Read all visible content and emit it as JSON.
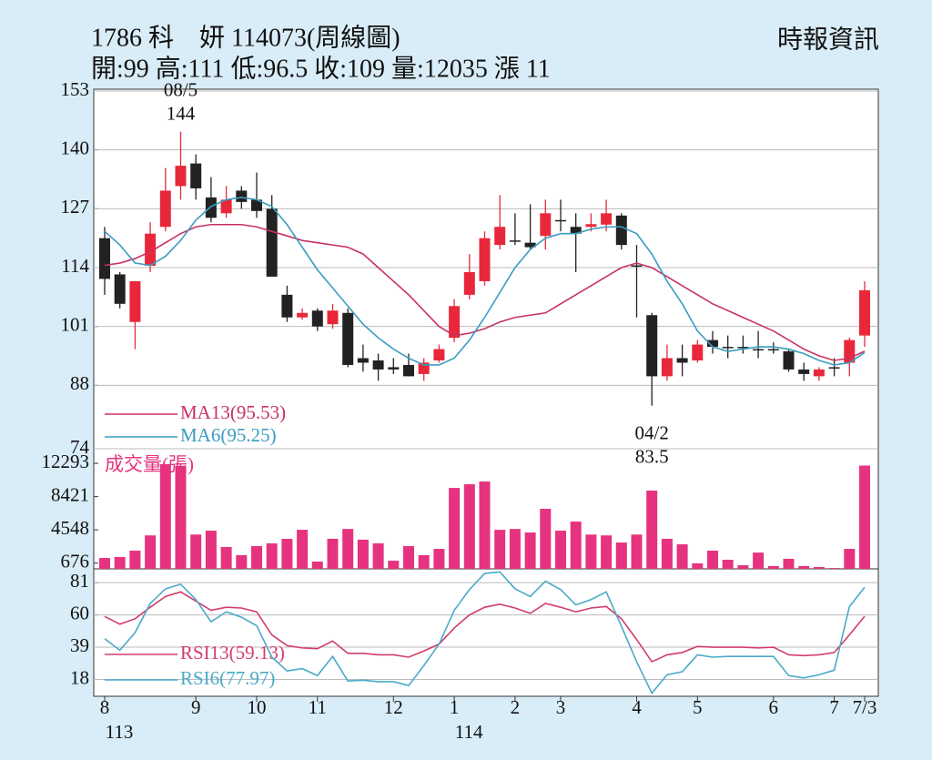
{
  "header": {
    "title": "1786  科　妍 114073(周線圖)",
    "source": "時報資訊",
    "summary": "開:99 高:111 低:96.5 收:109 量:12035 漲 11"
  },
  "chart_data": [
    {
      "type": "candlestick",
      "open": [
        120.5,
        112.5,
        102,
        114.4,
        123,
        132,
        137,
        129.5,
        126,
        131,
        129,
        127,
        108,
        103,
        104.5,
        101.5,
        104,
        94,
        93.5,
        92,
        92.5,
        90.5,
        93.5,
        98.5,
        108,
        111,
        119,
        120,
        119.5,
        121,
        124.5,
        123,
        123,
        123.5,
        125.5,
        114.5,
        103.5,
        90,
        94,
        93.5,
        98,
        96.5,
        96.5,
        96,
        96,
        95.5,
        91.5,
        90,
        92,
        93,
        99
      ],
      "high": [
        123,
        113,
        111,
        124,
        136,
        144,
        139,
        134,
        132,
        132,
        135,
        130,
        110,
        105,
        105,
        106,
        105,
        97,
        95,
        94,
        95,
        94,
        97,
        107,
        117,
        122,
        130,
        126,
        128,
        129,
        129,
        126,
        126,
        129,
        126,
        119,
        104,
        97,
        97,
        98,
        100,
        99,
        99,
        100,
        97.5,
        96,
        93,
        92,
        94,
        98.5,
        111
      ],
      "low": [
        108,
        105,
        96,
        113,
        122,
        129,
        129,
        124,
        125,
        127,
        125,
        112,
        102,
        102.5,
        100,
        100.5,
        92,
        91,
        89,
        90.5,
        90,
        89,
        93,
        97.5,
        107,
        110,
        118,
        119,
        118,
        118,
        122,
        113,
        122,
        122,
        118,
        103,
        83.5,
        89,
        90,
        93,
        95,
        94,
        95,
        94,
        95,
        91,
        89,
        89,
        90,
        90,
        96.5
      ],
      "close": [
        111.5,
        106,
        111,
        121.5,
        131,
        136.5,
        131.5,
        125,
        129,
        128.5,
        126.5,
        112,
        103,
        104,
        101,
        104.5,
        92.5,
        93,
        91.5,
        91.5,
        90,
        93,
        96,
        105.5,
        113,
        120.5,
        123,
        120,
        118.5,
        126,
        124.2,
        121.5,
        123.6,
        126,
        119,
        114.5,
        90,
        94,
        93,
        97,
        96.5,
        96.4,
        96.4,
        96,
        95.9,
        91.5,
        90.5,
        91.5,
        91.8,
        98,
        109
      ],
      "up_color": "#e8283a",
      "down_color": "#222222",
      "series": [
        {
          "name": "MA13(95.53)",
          "color": "#c8325f",
          "values": [
            114.5,
            115,
            116,
            117.5,
            119.5,
            121.5,
            123,
            123.5,
            123.5,
            123.5,
            123,
            122,
            121,
            120,
            119.5,
            119,
            118.5,
            117,
            114,
            111,
            108,
            104.5,
            101,
            99,
            99.5,
            100.5,
            102,
            103,
            103.5,
            104,
            106,
            108,
            110,
            112,
            114,
            115,
            114,
            112,
            110,
            108,
            106,
            104.5,
            103,
            101.5,
            100,
            98,
            96,
            94.5,
            93.5,
            94,
            95.53
          ]
        },
        {
          "name": "MA6(95.25)",
          "color": "#3a9cc0",
          "values": [
            122,
            119,
            115,
            114.5,
            116.5,
            120,
            124.5,
            127.5,
            129,
            129.5,
            129,
            127.5,
            123.5,
            118.5,
            113.5,
            109.5,
            105.5,
            101.5,
            98.5,
            96,
            94,
            92.5,
            92.5,
            94,
            98,
            103,
            108.5,
            114,
            118,
            120.5,
            121.5,
            121.5,
            122.5,
            123,
            123,
            121.5,
            117,
            111,
            106,
            100,
            96.5,
            95.5,
            96,
            96.5,
            96.5,
            96,
            95,
            93.5,
            92.5,
            93,
            95.25
          ]
        }
      ],
      "annotations": [
        {
          "date": "08/5",
          "value": 144
        },
        {
          "date": "04/2",
          "value": 83.5
        }
      ],
      "ylim": [
        74,
        153
      ],
      "yticks": [
        153,
        140,
        127,
        114,
        101,
        88,
        74
      ],
      "grid": true
    },
    {
      "type": "bar",
      "title": "成交量(張)",
      "color": "#e6337f",
      "values": [
        1270,
        1380,
        2120,
        3900,
        12200,
        12000,
        4000,
        4450,
        2550,
        1600,
        2650,
        2970,
        3500,
        4550,
        850,
        3500,
        4650,
        3400,
        2970,
        950,
        2650,
        1600,
        2330,
        9430,
        9860,
        10180,
        4550,
        4650,
        4240,
        7000,
        4450,
        5510,
        4000,
        3900,
        3070,
        4000,
        9120,
        3500,
        2860,
        640,
        2120,
        1060,
        420,
        1900,
        320,
        1170,
        320,
        210,
        100,
        2330,
        12035
      ],
      "ylim": [
        0,
        14000
      ],
      "yticks": [
        12293,
        8421,
        4548,
        676
      ],
      "grid": false
    },
    {
      "type": "line",
      "categories": [
        "8",
        null,
        null,
        null,
        null,
        null,
        "9",
        null,
        null,
        null,
        "10",
        null,
        null,
        null,
        "11",
        null,
        null,
        null,
        null,
        "12",
        null,
        null,
        null,
        "1",
        null,
        null,
        null,
        "2",
        null,
        null,
        "3",
        null,
        null,
        null,
        null,
        "4",
        null,
        null,
        null,
        "5",
        null,
        null,
        null,
        null,
        "6",
        null,
        null,
        null,
        "7",
        null,
        "7/3"
      ],
      "year_labels": [
        "113",
        null,
        null,
        null,
        null,
        null,
        null,
        null,
        null,
        null,
        null,
        null,
        null,
        null,
        null,
        null,
        null,
        null,
        null,
        null,
        null,
        null,
        null,
        "114",
        null,
        null,
        null,
        null,
        null,
        null,
        null,
        null,
        null,
        null,
        null,
        null,
        null,
        null,
        null,
        null,
        null,
        null,
        null,
        null,
        null,
        null,
        null,
        null,
        null,
        null,
        null
      ],
      "series": [
        {
          "name": "RSI13(59.13)",
          "color": "#d23c6e",
          "values": [
            59,
            54,
            57.5,
            65,
            72,
            75,
            69,
            63,
            65,
            64.5,
            62,
            47,
            40,
            38.5,
            38,
            43,
            35,
            35,
            34,
            34,
            32.5,
            36.5,
            41,
            51.5,
            60,
            65,
            67,
            64.5,
            61,
            67.5,
            65,
            62,
            64.5,
            65.5,
            57.5,
            44,
            29.5,
            34,
            35.5,
            39.5,
            39,
            39,
            39,
            38.5,
            39,
            34,
            33.5,
            34,
            35.5,
            47,
            59.13
          ]
        },
        {
          "name": "RSI6(77.97)",
          "color": "#4aaac8",
          "values": [
            44.5,
            37,
            48.5,
            67.5,
            77,
            80,
            70,
            55.5,
            62,
            58.5,
            53,
            32.5,
            23.5,
            25,
            20.5,
            33,
            17,
            17.5,
            16.5,
            16.5,
            14,
            27,
            41,
            63,
            76.5,
            87,
            88,
            77,
            72,
            82,
            76.5,
            66.5,
            70,
            75,
            52.5,
            29.5,
            9,
            21,
            23,
            34,
            32.5,
            33,
            33,
            33,
            33,
            20.5,
            19,
            21,
            24,
            65.5,
            77.97
          ]
        }
      ],
      "ylim": [
        7,
        90
      ],
      "yticks": [
        81,
        60,
        39,
        18
      ],
      "grid": true
    }
  ]
}
